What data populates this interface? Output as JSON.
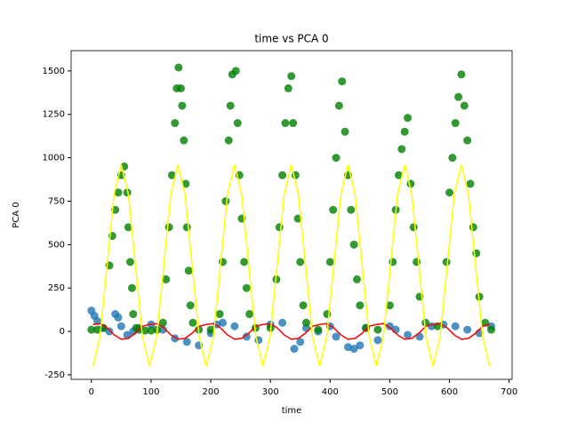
{
  "chart_data": {
    "type": "scatter",
    "title": "time vs PCA 0",
    "x_label": "time",
    "y_label": "PCA 0",
    "xlim": [
      -34,
      705
    ],
    "ylim": [
      -276,
      1617
    ],
    "xticks": [
      0,
      100,
      200,
      300,
      400,
      500,
      600,
      700
    ],
    "yticks": [
      -250,
      0,
      250,
      500,
      750,
      1000,
      1250,
      1500
    ],
    "series": [
      {
        "type": "scatter",
        "color": "#1f77b4",
        "x": [
          0,
          5,
          10,
          20,
          30,
          40,
          45,
          50,
          60,
          70,
          80,
          100,
          120,
          140,
          160,
          180,
          200,
          210,
          220,
          240,
          260,
          280,
          300,
          320,
          340,
          350,
          360,
          380,
          400,
          410,
          430,
          440,
          450,
          460,
          480,
          500,
          510,
          530,
          550,
          570,
          590,
          610,
          630,
          650,
          670
        ],
        "values": [
          120,
          90,
          60,
          20,
          0,
          100,
          80,
          30,
          -20,
          0,
          20,
          40,
          10,
          -40,
          -60,
          -80,
          -10,
          40,
          50,
          30,
          -30,
          -50,
          40,
          50,
          -100,
          -60,
          20,
          0,
          30,
          -30,
          -90,
          -100,
          -80,
          20,
          -50,
          30,
          10,
          -20,
          -30,
          30,
          40,
          30,
          10,
          -10,
          30
        ]
      },
      {
        "type": "scatter",
        "color": "#008000",
        "x": [
          0,
          10,
          20,
          30,
          35,
          40,
          45,
          50,
          55,
          60,
          62,
          65,
          68,
          70,
          75,
          80,
          90,
          100,
          110,
          120,
          125,
          130,
          135,
          140,
          143,
          146,
          150,
          152,
          155,
          158,
          160,
          163,
          166,
          170,
          180,
          200,
          215,
          220,
          225,
          230,
          233,
          236,
          242,
          245,
          248,
          252,
          256,
          260,
          265,
          275,
          300,
          310,
          315,
          320,
          325,
          330,
          335,
          338,
          342,
          346,
          350,
          355,
          360,
          380,
          395,
          400,
          405,
          410,
          415,
          420,
          425,
          430,
          435,
          440,
          445,
          450,
          460,
          480,
          500,
          505,
          510,
          515,
          520,
          525,
          530,
          535,
          540,
          545,
          550,
          560,
          580,
          595,
          600,
          605,
          610,
          615,
          620,
          625,
          630,
          635,
          640,
          645,
          650,
          660,
          670
        ],
        "values": [
          10,
          10,
          20,
          380,
          550,
          700,
          800,
          900,
          950,
          800,
          600,
          400,
          250,
          100,
          20,
          10,
          5,
          5,
          10,
          50,
          300,
          600,
          900,
          1200,
          1400,
          1520,
          1400,
          1300,
          1100,
          850,
          600,
          350,
          150,
          50,
          10,
          10,
          100,
          400,
          750,
          1100,
          1300,
          1480,
          1500,
          1200,
          900,
          650,
          400,
          250,
          100,
          20,
          20,
          300,
          600,
          900,
          1200,
          1400,
          1470,
          1200,
          900,
          650,
          400,
          150,
          50,
          10,
          100,
          400,
          700,
          1000,
          1300,
          1440,
          1150,
          900,
          700,
          500,
          300,
          150,
          20,
          10,
          150,
          400,
          700,
          900,
          1050,
          1150,
          1230,
          850,
          600,
          400,
          200,
          50,
          30,
          400,
          800,
          1000,
          1200,
          1350,
          1480,
          1300,
          1100,
          850,
          600,
          450,
          200,
          50,
          10
        ]
      },
      {
        "type": "line",
        "color": "#ff0000",
        "x": [
          2.5,
          14.4,
          26.3,
          38.1,
          50,
          61.9,
          73.8,
          85.6,
          97.5,
          109.4,
          121.3,
          133.1,
          145,
          156.9,
          168.8,
          180.6,
          192.5,
          204.4,
          216.3,
          228.1,
          240,
          251.9,
          263.8,
          275.6,
          287.5,
          299.4,
          311.3,
          323.1,
          335,
          346.9,
          358.8,
          370.6,
          382.5,
          394.4,
          406.3,
          418.1,
          430,
          441.9,
          453.8,
          465.6,
          477.5,
          489.4,
          501.3,
          513.1,
          525,
          536.9,
          548.8,
          560.6,
          572.5,
          584.4,
          596.3,
          608.1,
          620,
          631.9,
          643.8,
          655.6,
          667.5
        ],
        "values": [
          40,
          45,
          20,
          -20,
          -45,
          -40,
          -10,
          30,
          40,
          45,
          20,
          -20,
          -45,
          -40,
          -10,
          30,
          40,
          45,
          20,
          -20,
          -45,
          -40,
          -10,
          30,
          40,
          45,
          20,
          -20,
          -45,
          -40,
          -10,
          30,
          40,
          45,
          20,
          -20,
          -45,
          -40,
          -10,
          30,
          40,
          45,
          20,
          -20,
          -45,
          -40,
          -10,
          30,
          40,
          45,
          20,
          -20,
          -45,
          -40,
          -10,
          30,
          40
        ]
      },
      {
        "type": "line",
        "color": "#ffff00",
        "x": [
          2.5,
          14.4,
          26.3,
          38.1,
          50,
          61.9,
          73.8,
          85.6,
          97.5,
          109.4,
          121.3,
          133.1,
          145,
          156.9,
          168.8,
          180.6,
          192.5,
          204.4,
          216.3,
          228.1,
          240,
          251.9,
          263.8,
          275.6,
          287.5,
          299.4,
          311.3,
          323.1,
          335,
          346.9,
          358.8,
          370.6,
          382.5,
          394.4,
          406.3,
          418.1,
          430,
          441.9,
          453.8,
          465.6,
          477.5,
          489.4,
          501.3,
          513.1,
          525,
          536.9,
          548.8,
          560.6,
          572.5,
          584.4,
          596.3,
          608.1,
          620,
          631.9,
          643.8,
          655.6,
          667.5
        ],
        "values": [
          -200,
          -30,
          380,
          790,
          960,
          790,
          380,
          -30,
          -200,
          -30,
          380,
          790,
          960,
          790,
          380,
          -30,
          -200,
          -30,
          380,
          790,
          960,
          790,
          380,
          -30,
          -200,
          -30,
          380,
          790,
          960,
          790,
          380,
          -30,
          -200,
          -30,
          380,
          790,
          960,
          790,
          380,
          -30,
          -200,
          -30,
          380,
          790,
          960,
          790,
          380,
          -30,
          -200,
          -30,
          380,
          790,
          960,
          790,
          380,
          -30,
          -200
        ]
      }
    ]
  }
}
